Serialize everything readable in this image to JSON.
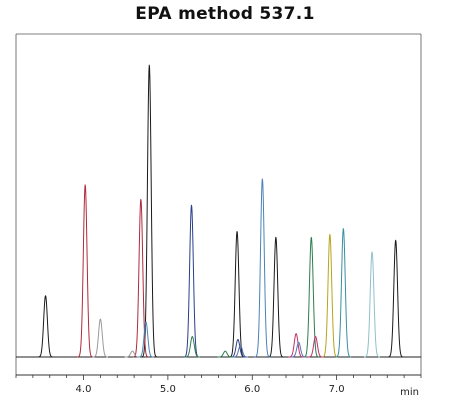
{
  "chart_data": {
    "type": "line",
    "title": "EPA method 537.1",
    "xlabel": "min",
    "ylabel": "",
    "xlim": [
      3.2,
      8.0
    ],
    "ylim": [
      0,
      100
    ],
    "x_ticks": [
      4.0,
      5.0,
      6.0,
      7.0
    ],
    "x_tick_labels": [
      "4.0",
      "5.0",
      "6.0",
      "7.0"
    ],
    "grid": false,
    "legend": "none",
    "baseline": 0,
    "series": [
      {
        "color": "#1a1a1a",
        "peaks": [
          {
            "rt": 3.55,
            "height": 21
          },
          {
            "rt": 4.78,
            "height": 100
          },
          {
            "rt": 5.82,
            "height": 43
          },
          {
            "rt": 6.28,
            "height": 41
          },
          {
            "rt": 7.7,
            "height": 40
          }
        ]
      },
      {
        "color": "#b02a3c",
        "peaks": [
          {
            "rt": 4.02,
            "height": 59
          },
          {
            "rt": 4.68,
            "height": 54
          }
        ]
      },
      {
        "color": "#9a9a9a",
        "peaks": [
          {
            "rt": 4.2,
            "height": 13
          },
          {
            "rt": 4.58,
            "height": 2
          }
        ]
      },
      {
        "color": "#2c3e8a",
        "peaks": [
          {
            "rt": 5.28,
            "height": 52
          },
          {
            "rt": 5.83,
            "height": 6
          }
        ]
      },
      {
        "color": "#4a82b8",
        "peaks": [
          {
            "rt": 6.12,
            "height": 61
          },
          {
            "rt": 4.74,
            "height": 12
          }
        ]
      },
      {
        "color": "#2e7d4f",
        "peaks": [
          {
            "rt": 5.29,
            "height": 7
          },
          {
            "rt": 5.68,
            "height": 2
          },
          {
            "rt": 6.7,
            "height": 41
          }
        ]
      },
      {
        "color": "#b8a41c",
        "peaks": [
          {
            "rt": 6.92,
            "height": 42
          }
        ]
      },
      {
        "color": "#3a8fa0",
        "peaks": [
          {
            "rt": 7.08,
            "height": 44
          }
        ]
      },
      {
        "color": "#8fc0cc",
        "peaks": [
          {
            "rt": 7.42,
            "height": 36
          }
        ]
      },
      {
        "color": "#c0306a",
        "peaks": [
          {
            "rt": 6.52,
            "height": 8
          },
          {
            "rt": 6.75,
            "height": 7
          }
        ]
      },
      {
        "color": "#5a6fb0",
        "peaks": [
          {
            "rt": 6.55,
            "height": 5
          },
          {
            "rt": 5.86,
            "height": 4
          }
        ]
      }
    ]
  }
}
